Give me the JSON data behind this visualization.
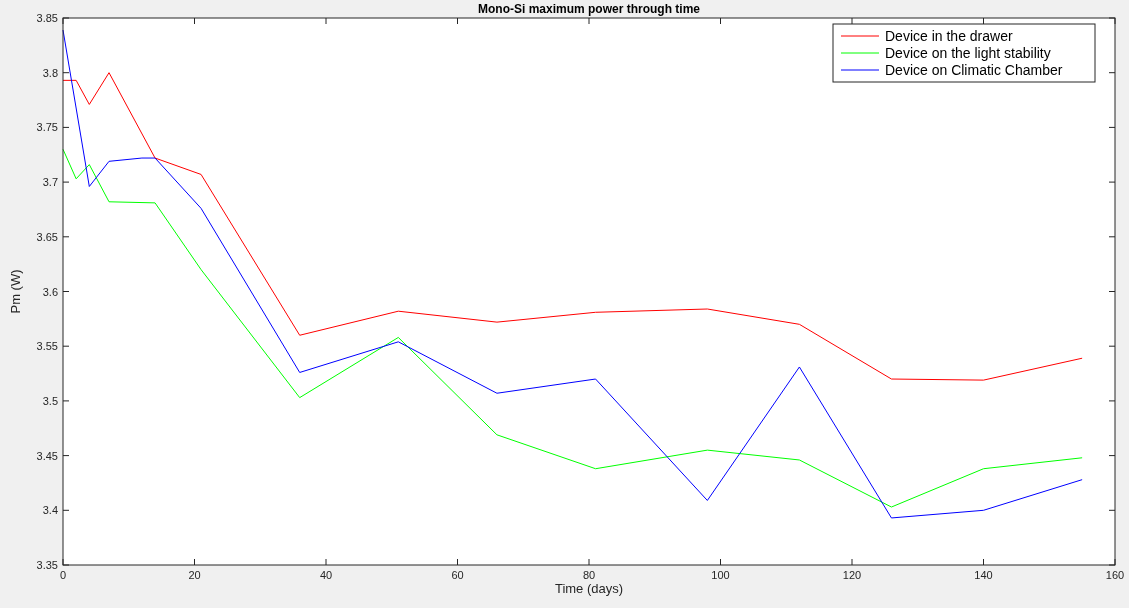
{
  "chart_data": {
    "type": "line",
    "title": "Mono-Si maximum power through time",
    "xlabel": "Time (days)",
    "ylabel": "Pm (W)",
    "xlim": [
      0,
      160
    ],
    "ylim": [
      3.35,
      3.85
    ],
    "xticks": [
      0,
      20,
      40,
      60,
      80,
      100,
      120,
      140,
      160
    ],
    "yticks": [
      3.35,
      3.4,
      3.45,
      3.5,
      3.55,
      3.6,
      3.65,
      3.7,
      3.75,
      3.8,
      3.85
    ],
    "grid": false,
    "legend": "top right",
    "line_style": "solid",
    "series": [
      {
        "name": "Device in the drawer",
        "color": "#ff0000",
        "x": [
          0,
          2,
          4,
          7,
          14,
          21,
          36,
          51,
          66,
          81,
          98,
          112,
          126,
          140,
          155
        ],
        "values": [
          3.793,
          3.793,
          3.771,
          3.8,
          3.722,
          3.707,
          3.56,
          3.582,
          3.572,
          3.581,
          3.584,
          3.57,
          3.52,
          3.519,
          3.539
        ]
      },
      {
        "name": "Device on the light stability",
        "color": "#00ff00",
        "x": [
          0,
          2,
          4,
          7,
          14,
          21,
          36,
          51,
          66,
          81,
          98,
          112,
          126,
          140,
          155
        ],
        "values": [
          3.73,
          3.703,
          3.716,
          3.682,
          3.681,
          3.62,
          3.503,
          3.558,
          3.469,
          3.438,
          3.455,
          3.446,
          3.403,
          3.438,
          3.448
        ]
      },
      {
        "name": "Device on Climatic Chamber",
        "color": "#0000ff",
        "x": [
          0,
          4,
          7,
          12,
          14,
          21,
          36,
          51,
          66,
          81,
          98,
          112,
          126,
          140,
          155
        ],
        "values": [
          3.839,
          3.696,
          3.719,
          3.722,
          3.722,
          3.676,
          3.526,
          3.554,
          3.507,
          3.52,
          3.409,
          3.531,
          3.393,
          3.4,
          3.428
        ]
      }
    ]
  }
}
